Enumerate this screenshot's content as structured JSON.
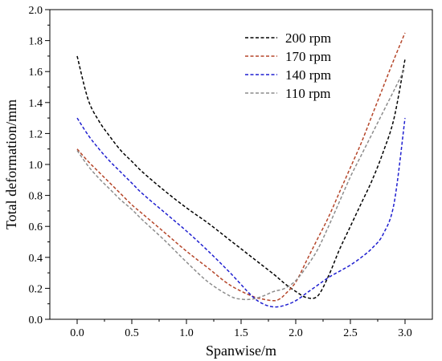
{
  "chart_data": {
    "type": "line",
    "title": "",
    "xlabel": "Spanwise/m",
    "ylabel": "Total deformation/mm",
    "xlim": [
      -0.25,
      3.25
    ],
    "ylim": [
      0.0,
      2.0
    ],
    "xticks": [
      0.0,
      0.5,
      1.0,
      1.5,
      2.0,
      2.5,
      3.0
    ],
    "yticks": [
      0.0,
      0.2,
      0.4,
      0.6,
      0.8,
      1.0,
      1.2,
      1.4,
      1.6,
      1.8,
      2.0
    ],
    "xtick_labels": [
      "0.0",
      "0.5",
      "1.0",
      "1.5",
      "2.0",
      "2.5",
      "3.0"
    ],
    "ytick_labels": [
      "0.0",
      "0.2",
      "0.4",
      "0.6",
      "0.8",
      "1.0",
      "1.2",
      "1.4",
      "1.6",
      "1.8",
      "2.0"
    ],
    "grid": false,
    "legend_position": "top-right",
    "line_style": "dashed",
    "series": [
      {
        "name": "200 rpm",
        "color": "#000000",
        "x": [
          0.0,
          0.1,
          0.2,
          0.3,
          0.4,
          0.5,
          0.6,
          0.8,
          1.0,
          1.2,
          1.4,
          1.6,
          1.8,
          1.9,
          2.0,
          2.1,
          2.2,
          2.3,
          2.4,
          2.5,
          2.6,
          2.7,
          2.8,
          2.9,
          3.0
        ],
        "y": [
          1.7,
          1.42,
          1.28,
          1.18,
          1.09,
          1.02,
          0.95,
          0.83,
          0.72,
          0.62,
          0.51,
          0.4,
          0.29,
          0.23,
          0.18,
          0.14,
          0.15,
          0.28,
          0.45,
          0.6,
          0.75,
          0.9,
          1.08,
          1.3,
          1.68
        ]
      },
      {
        "name": "170 rpm",
        "color": "#b5462a",
        "x": [
          0.0,
          0.1,
          0.2,
          0.3,
          0.4,
          0.5,
          0.6,
          0.8,
          1.0,
          1.2,
          1.4,
          1.6,
          1.7,
          1.8,
          1.85,
          1.9,
          2.0,
          2.1,
          2.2,
          2.3,
          2.4,
          2.5,
          2.6,
          2.7,
          2.8,
          2.9,
          3.0
        ],
        "y": [
          1.1,
          1.02,
          0.95,
          0.88,
          0.81,
          0.74,
          0.68,
          0.56,
          0.44,
          0.33,
          0.22,
          0.15,
          0.13,
          0.12,
          0.13,
          0.16,
          0.24,
          0.38,
          0.52,
          0.66,
          0.82,
          0.98,
          1.14,
          1.32,
          1.5,
          1.68,
          1.85
        ]
      },
      {
        "name": "140 rpm",
        "color": "#1f1fd0",
        "x": [
          0.0,
          0.1,
          0.2,
          0.3,
          0.4,
          0.5,
          0.6,
          0.8,
          1.0,
          1.2,
          1.4,
          1.6,
          1.7,
          1.8,
          1.9,
          2.0,
          2.1,
          2.2,
          2.3,
          2.4,
          2.5,
          2.6,
          2.7,
          2.8,
          2.9,
          3.0
        ],
        "y": [
          1.3,
          1.19,
          1.1,
          1.02,
          0.95,
          0.88,
          0.81,
          0.69,
          0.57,
          0.44,
          0.3,
          0.15,
          0.1,
          0.08,
          0.09,
          0.12,
          0.17,
          0.22,
          0.27,
          0.31,
          0.35,
          0.4,
          0.46,
          0.55,
          0.75,
          1.3
        ]
      },
      {
        "name": "110 rpm",
        "color": "#8c8c8c",
        "x": [
          0.0,
          0.1,
          0.2,
          0.3,
          0.4,
          0.5,
          0.6,
          0.8,
          1.0,
          1.2,
          1.4,
          1.5,
          1.6,
          1.7,
          1.8,
          1.9,
          2.0,
          2.1,
          2.2,
          2.3,
          2.4,
          2.5,
          2.6,
          2.7,
          2.8,
          2.9,
          3.0
        ],
        "y": [
          1.09,
          0.99,
          0.91,
          0.84,
          0.77,
          0.71,
          0.64,
          0.51,
          0.37,
          0.24,
          0.15,
          0.13,
          0.13,
          0.15,
          0.18,
          0.2,
          0.25,
          0.34,
          0.45,
          0.6,
          0.76,
          0.92,
          1.06,
          1.2,
          1.34,
          1.48,
          1.62
        ]
      }
    ]
  }
}
